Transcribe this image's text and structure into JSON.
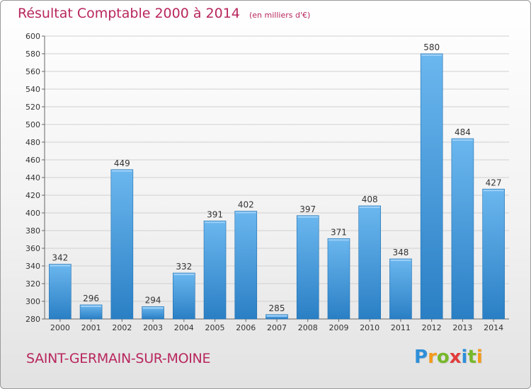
{
  "header": {
    "title": "Résultat Comptable 2000 à 2014",
    "unit": "(en milliers d'€)"
  },
  "footer": {
    "commune": "SAINT-GERMAIN-SUR-MOINE",
    "logo_text": "Proxiti",
    "logo_letters": [
      {
        "ch": "P",
        "color": "#2e8fd8"
      },
      {
        "ch": "r",
        "color": "#f39a1c"
      },
      {
        "ch": "o",
        "color": "#77b82a"
      },
      {
        "ch": "x",
        "color": "#e23c3c"
      },
      {
        "ch": "i",
        "color": "#2e8fd8"
      },
      {
        "ch": "t",
        "color": "#77b82a"
      },
      {
        "ch": "i",
        "color": "#f39a1c"
      }
    ]
  },
  "colors": {
    "title": "#b8265d",
    "bar_light": "#6bb7ef",
    "bar_dark": "#2a7fc4",
    "grid": "#d0d0d0"
  },
  "chart_data": {
    "type": "bar",
    "title": "Résultat Comptable 2000 à 2014",
    "xlabel": "",
    "ylabel": "",
    "ylim": [
      280,
      600
    ],
    "ytick_step": 20,
    "grid": true,
    "categories": [
      "2000",
      "2001",
      "2002",
      "2003",
      "2004",
      "2005",
      "2006",
      "2007",
      "2008",
      "2009",
      "2010",
      "2011",
      "2012",
      "2013",
      "2014"
    ],
    "values": [
      342,
      296,
      449,
      294,
      332,
      391,
      402,
      285,
      397,
      371,
      408,
      348,
      580,
      484,
      427
    ]
  }
}
